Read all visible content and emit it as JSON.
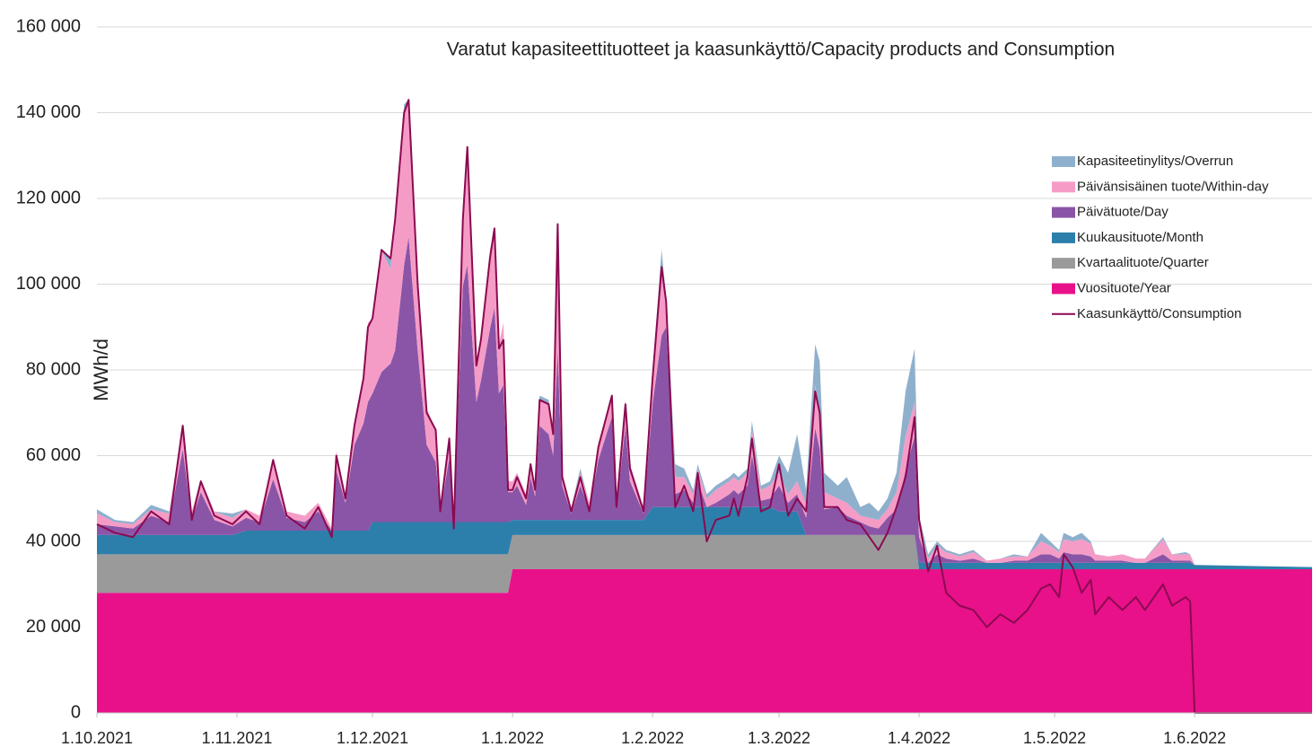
{
  "chart_data": {
    "type": "area",
    "title": "Varatut kapasiteettituotteet ja kaasunkäyttö/Capacity products and Consumption",
    "y_label": "MWh/d",
    "stacked": true,
    "grid": true,
    "legend": "right",
    "x": [
      "1.10.2021",
      "5.10.2021",
      "9.10.2021",
      "13.10.2021",
      "17.10.2021",
      "20.10.2021",
      "22.10.2021",
      "24.10.2021",
      "27.10.2021",
      "31.10.2021",
      "3.11.2021",
      "6.11.2021",
      "9.11.2021",
      "12.11.2021",
      "16.11.2021",
      "19.11.2021",
      "22.11.2021",
      "23.11.2021",
      "25.11.2021",
      "27.11.2021",
      "29.11.2021",
      "30.11.2021",
      "1.12.2021",
      "3.12.2021",
      "5.12.2021",
      "6.12.2021",
      "8.12.2021",
      "9.12.2021",
      "11.12.2021",
      "13.12.2021",
      "15.12.2021",
      "16.12.2021",
      "18.12.2021",
      "19.12.2021",
      "21.12.2021",
      "22.12.2021",
      "24.12.2021",
      "25.12.2021",
      "27.12.2021",
      "28.12.2021",
      "29.12.2021",
      "30.12.2021",
      "31.12.2021",
      "1.1.2022",
      "2.1.2022",
      "4.1.2022",
      "5.1.2022",
      "6.1.2022",
      "7.1.2022",
      "9.1.2022",
      "10.1.2022",
      "11.1.2022",
      "12.1.2022",
      "14.1.2022",
      "16.1.2022",
      "18.1.2022",
      "20.1.2022",
      "23.1.2022",
      "24.1.2022",
      "26.1.2022",
      "27.1.2022",
      "30.1.2022",
      "1.2.2022",
      "3.2.2022",
      "4.2.2022",
      "6.2.2022",
      "8.2.2022",
      "10.2.2022",
      "11.2.2022",
      "13.2.2022",
      "15.2.2022",
      "18.2.2022",
      "19.2.2022",
      "20.2.2022",
      "22.2.2022",
      "23.2.2022",
      "25.2.2022",
      "27.2.2022",
      "1.3.2022",
      "3.3.2022",
      "5.3.2022",
      "7.3.2022",
      "9.3.2022",
      "10.3.2022",
      "11.3.2022",
      "14.3.2022",
      "16.3.2022",
      "19.3.2022",
      "21.3.2022",
      "23.3.2022",
      "25.3.2022",
      "27.3.2022",
      "29.3.2022",
      "31.3.2022",
      "1.4.2022",
      "3.4.2022",
      "5.4.2022",
      "7.4.2022",
      "10.4.2022",
      "13.4.2022",
      "16.4.2022",
      "19.4.2022",
      "22.4.2022",
      "25.4.2022",
      "28.4.2022",
      "30.4.2022",
      "2.5.2022",
      "3.5.2022",
      "5.5.2022",
      "7.5.2022",
      "9.5.2022",
      "10.5.2022",
      "13.5.2022",
      "16.5.2022",
      "19.5.2022",
      "21.5.2022",
      "25.5.2022",
      "27.5.2022",
      "30.5.2022",
      "31.5.2022",
      "1.6.2022",
      "27.6.2022"
    ],
    "xlim": [
      "1.10.2021",
      "27.6.2022"
    ],
    "xticks": [
      "1.10.2021",
      "1.11.2021",
      "1.12.2021",
      "1.1.2022",
      "1.2.2022",
      "1.3.2022",
      "1.4.2022",
      "1.5.2022",
      "1.6.2022"
    ],
    "ylim": [
      0,
      160000
    ],
    "yticks": [
      0,
      {
        "value": 20000,
        "label": "20 000"
      },
      {
        "value": 40000,
        "label": "40 000"
      },
      {
        "value": 60000,
        "label": "60 000"
      },
      {
        "value": 80000,
        "label": "80 000"
      },
      {
        "value": 100000,
        "label": "100 000"
      },
      {
        "value": 120000,
        "label": "120 000"
      },
      {
        "value": 140000,
        "label": "140 000"
      },
      {
        "value": 160000,
        "label": "160 000"
      }
    ],
    "series": [
      {
        "name": "Vuosituote/Year",
        "color": "#e8118a",
        "values": [
          28000,
          28000,
          28000,
          28000,
          28000,
          28000,
          28000,
          28000,
          28000,
          28000,
          28000,
          28000,
          28000,
          28000,
          28000,
          28000,
          28000,
          28000,
          28000,
          28000,
          28000,
          28000,
          28000,
          28000,
          28000,
          28000,
          28000,
          28000,
          28000,
          28000,
          28000,
          28000,
          28000,
          28000,
          28000,
          28000,
          28000,
          28000,
          28000,
          28000,
          28000,
          28000,
          28000,
          33500,
          33500,
          33500,
          33500,
          33500,
          33500,
          33500,
          33500,
          33500,
          33500,
          33500,
          33500,
          33500,
          33500,
          33500,
          33500,
          33500,
          33500,
          33500,
          33500,
          33500,
          33500,
          33500,
          33500,
          33500,
          33500,
          33500,
          33500,
          33500,
          33500,
          33500,
          33500,
          33500,
          33500,
          33500,
          33500,
          33500,
          33500,
          33500,
          33500,
          33500,
          33500,
          33500,
          33500,
          33500,
          33500,
          33500,
          33500,
          33500,
          33500,
          33500,
          33500,
          33500,
          33500,
          33500,
          33500,
          33500,
          33500,
          33500,
          33500,
          33500,
          33500,
          33500,
          33500,
          33500,
          33500,
          33500,
          33500,
          33500,
          33500,
          33500,
          33500,
          33500,
          33500,
          33500,
          33500,
          33500,
          33500,
          33500
        ]
      },
      {
        "name": "Kvartaalituote/Quarter",
        "color": "#9a9a9a",
        "values": [
          9000,
          9000,
          9000,
          9000,
          9000,
          9000,
          9000,
          9000,
          9000,
          9000,
          9000,
          9000,
          9000,
          9000,
          9000,
          9000,
          9000,
          9000,
          9000,
          9000,
          9000,
          9000,
          9000,
          9000,
          9000,
          9000,
          9000,
          9000,
          9000,
          9000,
          9000,
          9000,
          9000,
          9000,
          9000,
          9000,
          9000,
          9000,
          9000,
          9000,
          9000,
          9000,
          9000,
          8000,
          8000,
          8000,
          8000,
          8000,
          8000,
          8000,
          8000,
          8000,
          8000,
          8000,
          8000,
          8000,
          8000,
          8000,
          8000,
          8000,
          8000,
          8000,
          8000,
          8000,
          8000,
          8000,
          8000,
          8000,
          8000,
          8000,
          8000,
          8000,
          8000,
          8000,
          8000,
          8000,
          8000,
          8000,
          8000,
          8000,
          8000,
          8000,
          8000,
          8000,
          8000,
          8000,
          8000,
          8000,
          8000,
          8000,
          8000,
          8000,
          8000,
          8000,
          0,
          0,
          0,
          0,
          0,
          0,
          0,
          0,
          0,
          0,
          0,
          0,
          0,
          0,
          0,
          0,
          0,
          0,
          0,
          0,
          0,
          0,
          0,
          0,
          0,
          0,
          0,
          0
        ]
      },
      {
        "name": "Kuukausituote/Month",
        "color": "#2d7fab",
        "values": [
          4500,
          4500,
          4500,
          4500,
          4500,
          4500,
          4500,
          4500,
          4500,
          4500,
          5500,
          5500,
          5500,
          5500,
          5500,
          5500,
          5500,
          5500,
          5500,
          5500,
          5500,
          5500,
          7500,
          7500,
          7500,
          7500,
          7500,
          7500,
          7500,
          7500,
          7500,
          7500,
          7500,
          7500,
          7500,
          7500,
          7500,
          7500,
          7500,
          7500,
          7500,
          7500,
          7500,
          3500,
          3500,
          3500,
          3500,
          3500,
          3500,
          3500,
          3500,
          3500,
          3500,
          3500,
          3500,
          3500,
          3500,
          3500,
          3500,
          3500,
          3500,
          3500,
          6500,
          6500,
          6500,
          6500,
          6500,
          6500,
          6500,
          6500,
          6500,
          6500,
          6500,
          6500,
          6500,
          6500,
          6500,
          6500,
          5500,
          5500,
          5500,
          0,
          0,
          0,
          0,
          0,
          0,
          0,
          0,
          0,
          0,
          0,
          0,
          0,
          1500,
          1500,
          1500,
          1500,
          1500,
          1500,
          1500,
          1500,
          1500,
          1500,
          1500,
          1500,
          1500,
          1500,
          1500,
          1500,
          1500,
          1500,
          1500,
          1500,
          1500,
          1500,
          1500,
          1500,
          1500,
          1500,
          1000,
          500
        ]
      },
      {
        "name": "Päivätuote/Day",
        "color": "#8a55a7",
        "values": [
          2500,
          2000,
          1500,
          4500,
          3000,
          20000,
          3500,
          10000,
          3500,
          2000,
          3000,
          2000,
          12000,
          3000,
          2000,
          4500,
          0,
          14000,
          6500,
          20000,
          25000,
          30000,
          30000,
          35000,
          37000,
          40000,
          60000,
          66500,
          40000,
          18000,
          14000,
          2500,
          15000,
          500,
          55000,
          60000,
          28000,
          33000,
          45000,
          50000,
          30000,
          32000,
          7000,
          6500,
          8000,
          3500,
          10000,
          5500,
          22000,
          20000,
          15000,
          40000,
          8000,
          1500,
          8000,
          2500,
          14000,
          24000,
          2500,
          22000,
          9000,
          1500,
          24000,
          40000,
          42000,
          3000,
          4000,
          1000,
          6000,
          0,
          1000,
          3000,
          4000,
          3000,
          5000,
          12000,
          1500,
          2000,
          6000,
          2000,
          4000,
          4000,
          25000,
          20000,
          6000,
          6500,
          4500,
          3000,
          2000,
          1500,
          4000,
          6000,
          15000,
          23000,
          6000,
          0,
          2000,
          1000,
          500,
          1000,
          0,
          0,
          500,
          500,
          2000,
          2000,
          1000,
          2500,
          2000,
          2000,
          1500,
          500,
          500,
          500,
          0,
          0,
          2000,
          500,
          500,
          500,
          0,
          0
        ]
      },
      {
        "name": "Päivänsisäinen tuote/Within-day",
        "color": "#f59cc6",
        "values": [
          2500,
          1000,
          1000,
          1500,
          2000,
          5500,
          2000,
          3000,
          2000,
          2000,
          2000,
          1500,
          4500,
          1500,
          1500,
          2000,
          500,
          4500,
          2000,
          5500,
          11000,
          18500,
          17500,
          28500,
          22000,
          30500,
          35000,
          32000,
          15500,
          8500,
          7500,
          500,
          4500,
          0,
          18500,
          27500,
          9500,
          10500,
          18500,
          18500,
          11500,
          14500,
          2500,
          2500,
          3000,
          2500,
          3000,
          2500,
          6000,
          7000,
          6000,
          29000,
          3000,
          1500,
          3000,
          1500,
          4000,
          5000,
          1500,
          6000,
          4000,
          1500,
          8000,
          16000,
          7000,
          4000,
          3000,
          2000,
          3000,
          2000,
          3000,
          3000,
          3000,
          3000,
          3000,
          6000,
          2500,
          3000,
          3000,
          2000,
          3000,
          3000,
          10000,
          9000,
          4000,
          2000,
          3000,
          1500,
          2000,
          2000,
          2000,
          4000,
          8000,
          8000,
          3000,
          1000,
          2000,
          1500,
          1000,
          1500,
          500,
          1000,
          1000,
          1000,
          3000,
          2000,
          1500,
          3000,
          3000,
          3500,
          3000,
          1500,
          1000,
          1500,
          1000,
          1000,
          3500,
          1500,
          1500,
          1500,
          0,
          0
        ]
      },
      {
        "name": "Kapasiteetinylitys/Overrun",
        "color": "#8fb0cd",
        "values": [
          1000,
          500,
          500,
          1000,
          500,
          0,
          0,
          0,
          0,
          1000,
          0,
          0,
          0,
          0,
          0,
          0,
          0,
          0,
          0,
          0,
          500,
          0,
          0,
          0,
          2500,
          0,
          2500,
          0,
          0,
          0,
          0,
          0,
          0,
          0,
          0,
          0,
          0,
          0,
          0,
          0,
          0,
          0,
          0,
          0,
          0,
          0,
          0,
          0,
          1000,
          1000,
          0,
          0,
          0,
          0,
          1000,
          0,
          0,
          0,
          0,
          0,
          0,
          0,
          0,
          4000,
          0,
          3000,
          2000,
          1000,
          1000,
          1000,
          1000,
          1000,
          1000,
          1000,
          1000,
          2000,
          1000,
          1000,
          4000,
          5000,
          11000,
          3500,
          9500,
          11500,
          4500,
          3000,
          6000,
          2000,
          3500,
          2000,
          2500,
          4500,
          10500,
          12500,
          2000,
          1000,
          1000,
          500,
          500,
          500,
          0,
          0,
          500,
          0,
          2000,
          1000,
          500,
          1500,
          1000,
          1500,
          500,
          0,
          0,
          0,
          0,
          0,
          500,
          0,
          500,
          0,
          0,
          0
        ]
      },
      {
        "name": "Kaasunkäyttö/Consumption",
        "color": "#8b0a50",
        "type": "line",
        "values": [
          44000,
          42000,
          41000,
          47000,
          44000,
          67000,
          45000,
          54000,
          46000,
          44000,
          47000,
          44000,
          59000,
          46000,
          43000,
          48000,
          41000,
          60000,
          50000,
          67000,
          78000,
          90000,
          92000,
          108000,
          106000,
          115000,
          140000,
          143000,
          100000,
          70000,
          66000,
          47000,
          64000,
          43000,
          115000,
          132000,
          81000,
          87000,
          106000,
          113000,
          85000,
          87000,
          52000,
          52000,
          55000,
          50000,
          58000,
          52000,
          73000,
          72000,
          65000,
          114000,
          55000,
          47000,
          55000,
          47000,
          62000,
          74000,
          48000,
          72000,
          57000,
          47000,
          78000,
          104000,
          96000,
          48000,
          53000,
          47000,
          56000,
          40000,
          45000,
          46000,
          50000,
          46000,
          55000,
          64000,
          47000,
          48000,
          58000,
          46000,
          50000,
          47000,
          75000,
          70000,
          48000,
          48000,
          45000,
          44000,
          41000,
          38000,
          42000,
          48000,
          55000,
          69000,
          45000,
          33000,
          39000,
          28000,
          25000,
          24000,
          20000,
          23000,
          21000,
          24000,
          29000,
          30000,
          27000,
          37000,
          34000,
          28000,
          31000,
          23000,
          27000,
          24000,
          27000,
          24000,
          30000,
          25000,
          27000,
          26000,
          0,
          0
        ]
      }
    ]
  }
}
